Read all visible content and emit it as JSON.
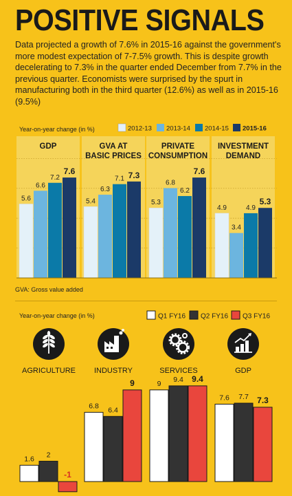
{
  "title": "POSITIVE SIGNALS",
  "intro": "Data projected a growth of 7.6% in 2015-16 against the government's more modest expectation of 7-7.5% growth. This is despite growth decelerating to 7.3% in the quarter ended December from 7.7% in the previous quarter. Economists were surprised by the spurt in manufacturing both in the third quarter (12.6%) as well as in 2015-16 (9.5%)",
  "colors": {
    "background": "#f7c21a",
    "panel": "#f5d45a",
    "c2012": "#e4f1f9",
    "c2013": "#6cb5df",
    "c2014": "#0b7aa8",
    "c2015": "#1b3a68",
    "q1": "#ffffff",
    "q2": "#333333",
    "q3": "#e9463d"
  },
  "icons": [
    "wheat-icon",
    "factory-icon",
    "gears-icon",
    "rising-bar-chart-icon"
  ],
  "chart_data": [
    {
      "type": "bar",
      "ylabel": "Year-on-year change (in %)",
      "footnote": "GVA: Gross value added",
      "categories": [
        "GDP",
        "GVA AT BASIC PRICES",
        "PRIVATE CONSUMPTION",
        "INVESTMENT DEMAND"
      ],
      "series": [
        {
          "name": "2012-13",
          "values": [
            5.6,
            5.4,
            5.3,
            4.9
          ]
        },
        {
          "name": "2013-14",
          "values": [
            6.6,
            6.3,
            6.8,
            3.4
          ]
        },
        {
          "name": "2014-15",
          "values": [
            7.2,
            7.1,
            6.2,
            4.9
          ]
        },
        {
          "name": "2015-16",
          "values": [
            7.6,
            7.3,
            7.6,
            5.3
          ]
        }
      ],
      "ylim": [
        0,
        8
      ],
      "grid": true,
      "legend": "top-right"
    },
    {
      "type": "bar",
      "ylabel": "Year-on-year change (in %)",
      "categories": [
        "AGRICULTURE",
        "INDUSTRY",
        "SERVICES",
        "GDP"
      ],
      "series": [
        {
          "name": "Q1 FY16",
          "values": [
            1.6,
            6.8,
            9,
            7.6
          ]
        },
        {
          "name": "Q2 FY16",
          "values": [
            2,
            6.4,
            9.4,
            7.7
          ]
        },
        {
          "name": "Q3 FY16",
          "values": [
            -1,
            9,
            9.4,
            7.3
          ]
        }
      ],
      "ylim": [
        -1.2,
        10.5
      ],
      "grid": false,
      "legend": "top-right"
    }
  ]
}
